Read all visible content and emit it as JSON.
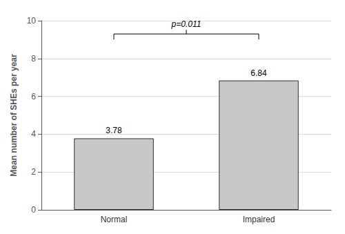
{
  "chart_data": {
    "type": "bar",
    "categories": [
      "Normal",
      "Impaired"
    ],
    "values": [
      3.78,
      6.84
    ],
    "color": "#c8c8c8",
    "ylabel": "Mean number of SHEs per year",
    "ylim": [
      0,
      10
    ],
    "yticks": [
      0,
      2,
      4,
      6,
      8,
      10
    ],
    "grid": true,
    "data_labels": true,
    "annotations": [
      {
        "text": "p=0.011",
        "x": [
          "Normal",
          "Impaired"
        ],
        "y": 9.3
      }
    ]
  }
}
